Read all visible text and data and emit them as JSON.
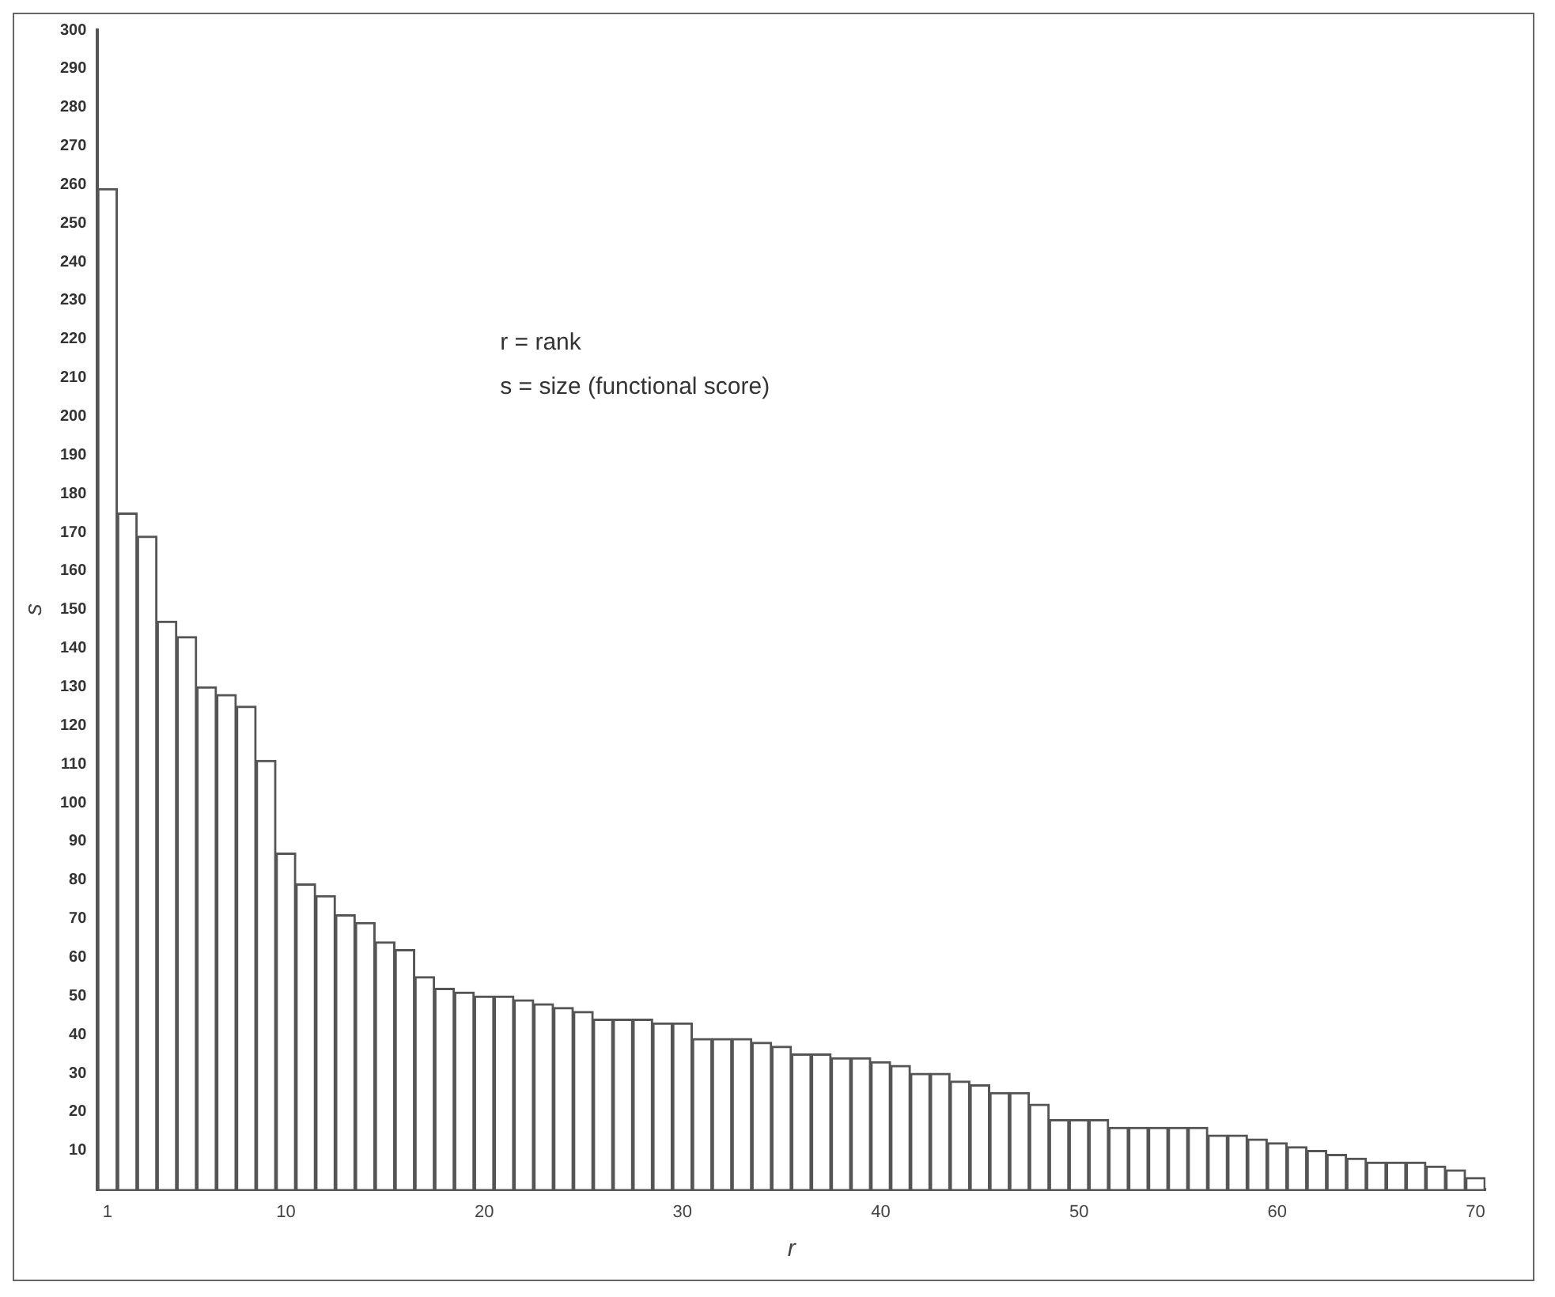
{
  "chart_data": {
    "type": "bar",
    "xlabel": "r",
    "ylabel": "s",
    "annotations": [
      "r = rank",
      "s = size (functional score)"
    ],
    "categories": [
      "1",
      null,
      null,
      null,
      null,
      null,
      null,
      null,
      null,
      "10",
      null,
      null,
      null,
      null,
      null,
      null,
      null,
      null,
      null,
      "20",
      null,
      null,
      null,
      null,
      null,
      null,
      null,
      null,
      null,
      "30",
      null,
      null,
      null,
      null,
      null,
      null,
      null,
      null,
      null,
      "40",
      null,
      null,
      null,
      null,
      null,
      null,
      null,
      null,
      null,
      "50",
      null,
      null,
      null,
      null,
      null,
      null,
      null,
      null,
      null,
      "60",
      null,
      null,
      null,
      null,
      null,
      null,
      null,
      null,
      null,
      "70"
    ],
    "values": [
      259,
      175,
      169,
      147,
      143,
      130,
      128,
      125,
      111,
      87,
      79,
      76,
      71,
      69,
      64,
      62,
      55,
      52,
      51,
      50,
      50,
      49,
      48,
      47,
      46,
      44,
      44,
      44,
      43,
      43,
      39,
      39,
      39,
      38,
      37,
      35,
      35,
      34,
      34,
      33,
      32,
      30,
      30,
      28,
      27,
      25,
      25,
      22,
      18,
      18,
      18,
      16,
      16,
      16,
      16,
      16,
      14,
      14,
      13,
      12,
      11,
      10,
      9,
      8,
      7,
      7,
      7,
      6,
      5,
      3
    ],
    "color": "#ffffff",
    "ylim": [
      0,
      300
    ],
    "yticks": [
      10,
      20,
      30,
      40,
      50,
      60,
      70,
      80,
      90,
      100,
      110,
      120,
      130,
      140,
      150,
      160,
      170,
      180,
      190,
      200,
      210,
      220,
      230,
      240,
      250,
      260,
      270,
      280,
      290,
      300
    ],
    "grid": false,
    "legend": false
  }
}
